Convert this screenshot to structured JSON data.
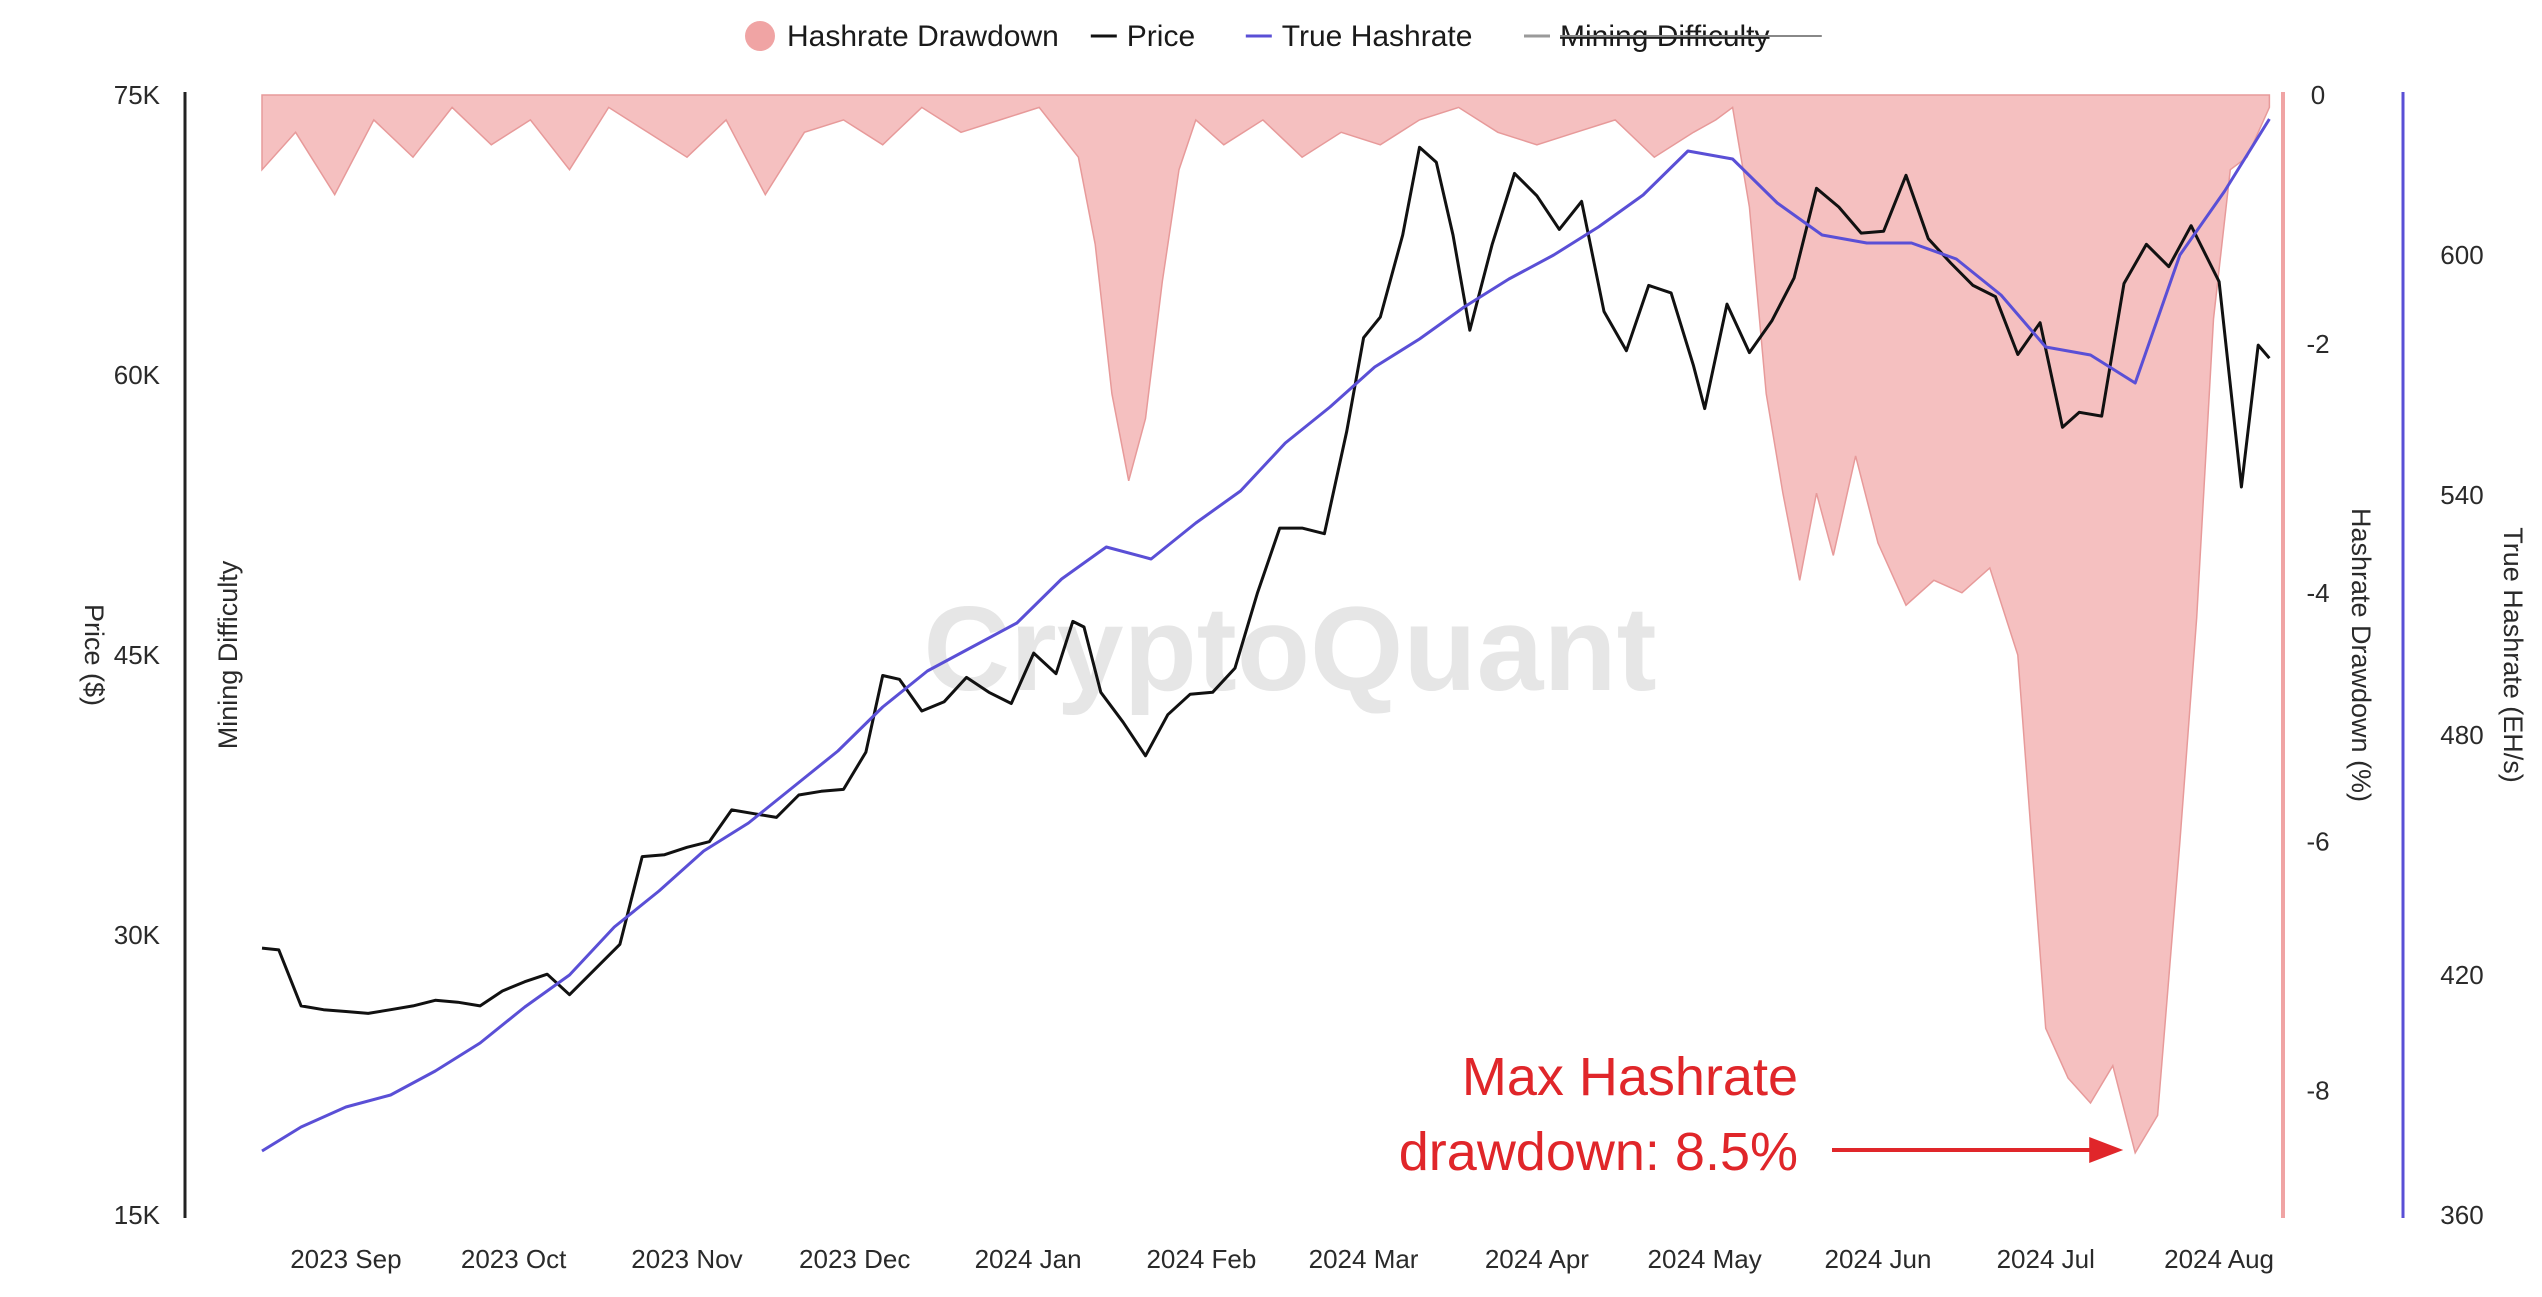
{
  "chart_data": {
    "type": "line",
    "watermark": "CryptoQuant",
    "legend": {
      "position": "top-center",
      "items": [
        {
          "key": "drawdown",
          "label": "Hashrate Drawdown",
          "marker": "dot",
          "color": "#f0a4a4"
        },
        {
          "key": "price",
          "label": "Price",
          "marker": "line",
          "color": "#111111"
        },
        {
          "key": "hashrate",
          "label": "True Hashrate",
          "marker": "line",
          "color": "#5a4fd6"
        },
        {
          "key": "difficulty",
          "label": "Mining Difficulty",
          "marker": "line",
          "color": "#9a9a9a",
          "disabled": true
        }
      ]
    },
    "x_axis": {
      "ticks": [
        "2023 Sep",
        "2023 Oct",
        "2023 Nov",
        "2023 Dec",
        "2024 Jan",
        "2024 Feb",
        "2024 Mar",
        "2024 Apr",
        "2024 May",
        "2024 Jun",
        "2024 Jul",
        "2024 Aug"
      ],
      "range": [
        "2023-08-17",
        "2024-08-11"
      ]
    },
    "y_axes": {
      "price": {
        "label": "Price ($)",
        "range": [
          15000,
          75000
        ],
        "ticks": [
          "15K",
          "30K",
          "45K",
          "60K",
          "75K"
        ],
        "tick_values": [
          15000,
          30000,
          45000,
          60000,
          75000
        ],
        "side": "left"
      },
      "difficulty": {
        "label": "Mining Difficulty",
        "side": "left"
      },
      "drawdown": {
        "label": "Hashrate Drawdown (%)",
        "range": [
          -9,
          0
        ],
        "ticks": [
          "0",
          "-2",
          "-4",
          "-6",
          "-8"
        ],
        "tick_values": [
          0,
          -2,
          -4,
          -6,
          -8
        ],
        "side": "right"
      },
      "hashrate": {
        "label": "True Hashrate (EH/s)",
        "range": [
          360,
          640
        ],
        "ticks": [
          "360",
          "420",
          "480",
          "540",
          "600"
        ],
        "tick_values": [
          360,
          420,
          480,
          540,
          600
        ],
        "side": "right"
      }
    },
    "series": [
      {
        "name": "Price",
        "axis": "price",
        "x": [
          "2023-08-17",
          "2023-08-20",
          "2023-08-24",
          "2023-08-28",
          "2023-09-01",
          "2023-09-05",
          "2023-09-09",
          "2023-09-13",
          "2023-09-17",
          "2023-09-21",
          "2023-09-25",
          "2023-09-29",
          "2023-10-03",
          "2023-10-07",
          "2023-10-11",
          "2023-10-16",
          "2023-10-20",
          "2023-10-24",
          "2023-10-28",
          "2023-11-01",
          "2023-11-05",
          "2023-11-09",
          "2023-11-13",
          "2023-11-17",
          "2023-11-21",
          "2023-11-25",
          "2023-11-29",
          "2023-12-03",
          "2023-12-06",
          "2023-12-09",
          "2023-12-13",
          "2023-12-17",
          "2023-12-21",
          "2023-12-25",
          "2023-12-29",
          "2024-01-02",
          "2024-01-06",
          "2024-01-09",
          "2024-01-11",
          "2024-01-14",
          "2024-01-18",
          "2024-01-22",
          "2024-01-26",
          "2024-01-30",
          "2024-02-03",
          "2024-02-07",
          "2024-02-11",
          "2024-02-15",
          "2024-02-19",
          "2024-02-23",
          "2024-02-27",
          "2024-03-01",
          "2024-03-04",
          "2024-03-08",
          "2024-03-11",
          "2024-03-14",
          "2024-03-17",
          "2024-03-20",
          "2024-03-24",
          "2024-03-28",
          "2024-04-01",
          "2024-04-05",
          "2024-04-09",
          "2024-04-13",
          "2024-04-17",
          "2024-04-21",
          "2024-04-25",
          "2024-04-29",
          "2024-05-01",
          "2024-05-05",
          "2024-05-09",
          "2024-05-13",
          "2024-05-17",
          "2024-05-21",
          "2024-05-25",
          "2024-05-29",
          "2024-06-02",
          "2024-06-06",
          "2024-06-10",
          "2024-06-14",
          "2024-06-18",
          "2024-06-22",
          "2024-06-26",
          "2024-06-30",
          "2024-07-04",
          "2024-07-07",
          "2024-07-11",
          "2024-07-15",
          "2024-07-19",
          "2024-07-23",
          "2024-07-27",
          "2024-07-29",
          "2024-08-01",
          "2024-08-05",
          "2024-08-08",
          "2024-08-10"
        ],
        "values": [
          29300,
          29200,
          26200,
          26000,
          25900,
          25800,
          26000,
          26200,
          26500,
          26400,
          26200,
          27000,
          27500,
          27900,
          26800,
          28300,
          29500,
          34200,
          34300,
          34700,
          35000,
          36700,
          36500,
          36300,
          37500,
          37700,
          37800,
          39800,
          43900,
          43700,
          42000,
          42500,
          43800,
          43000,
          42400,
          45100,
          44000,
          46800,
          46500,
          43000,
          41400,
          39600,
          41800,
          42900,
          43000,
          44300,
          48300,
          51800,
          51800,
          51500,
          57000,
          62000,
          63100,
          67500,
          72200,
          71400,
          67500,
          62400,
          67000,
          70800,
          69600,
          67800,
          69300,
          63400,
          61300,
          64800,
          64400,
          60500,
          58200,
          63800,
          61200,
          62900,
          65200,
          70000,
          69000,
          67600,
          67700,
          70700,
          67300,
          66000,
          64800,
          64200,
          61100,
          62800,
          57200,
          58000,
          57800,
          64900,
          67000,
          65800,
          68000,
          66800,
          65000,
          54000,
          61600,
          60900
        ],
        "color": "#111111"
      },
      {
        "name": "True Hashrate",
        "axis": "hashrate",
        "x": [
          "2023-08-17",
          "2023-08-24",
          "2023-09-01",
          "2023-09-09",
          "2023-09-17",
          "2023-09-25",
          "2023-10-03",
          "2023-10-11",
          "2023-10-19",
          "2023-10-27",
          "2023-11-04",
          "2023-11-12",
          "2023-11-20",
          "2023-11-28",
          "2023-12-06",
          "2023-12-14",
          "2023-12-22",
          "2023-12-30",
          "2024-01-07",
          "2024-01-15",
          "2024-01-23",
          "2024-01-31",
          "2024-02-08",
          "2024-02-16",
          "2024-02-24",
          "2024-03-03",
          "2024-03-11",
          "2024-03-19",
          "2024-03-27",
          "2024-04-04",
          "2024-04-12",
          "2024-04-20",
          "2024-04-28",
          "2024-05-06",
          "2024-05-14",
          "2024-05-22",
          "2024-05-30",
          "2024-06-07",
          "2024-06-15",
          "2024-06-23",
          "2024-07-01",
          "2024-07-09",
          "2024-07-17",
          "2024-07-25",
          "2024-08-02",
          "2024-08-10"
        ],
        "values": [
          376,
          382,
          387,
          390,
          396,
          403,
          412,
          420,
          432,
          441,
          451,
          458,
          467,
          476,
          487,
          496,
          502,
          508,
          519,
          527,
          524,
          533,
          541,
          553,
          562,
          572,
          579,
          587,
          594,
          600,
          607,
          615,
          626,
          624,
          613,
          605,
          603,
          603,
          599,
          590,
          577,
          575,
          568,
          600,
          616,
          634
        ],
        "color": "#5a4fd6"
      },
      {
        "name": "Hashrate Drawdown",
        "axis": "drawdown",
        "type": "area",
        "x": [
          "2023-08-17",
          "2023-08-23",
          "2023-08-30",
          "2023-09-06",
          "2023-09-13",
          "2023-09-20",
          "2023-09-27",
          "2023-10-04",
          "2023-10-11",
          "2023-10-18",
          "2023-10-25",
          "2023-11-01",
          "2023-11-08",
          "2023-11-15",
          "2023-11-22",
          "2023-11-29",
          "2023-12-06",
          "2023-12-13",
          "2023-12-20",
          "2023-12-27",
          "2024-01-03",
          "2024-01-10",
          "2024-01-13",
          "2024-01-16",
          "2024-01-19",
          "2024-01-22",
          "2024-01-25",
          "2024-01-28",
          "2024-01-31",
          "2024-02-05",
          "2024-02-12",
          "2024-02-19",
          "2024-02-26",
          "2024-03-04",
          "2024-03-11",
          "2024-03-18",
          "2024-03-25",
          "2024-04-01",
          "2024-04-08",
          "2024-04-15",
          "2024-04-22",
          "2024-04-29",
          "2024-05-03",
          "2024-05-06",
          "2024-05-09",
          "2024-05-12",
          "2024-05-15",
          "2024-05-18",
          "2024-05-21",
          "2024-05-24",
          "2024-05-28",
          "2024-06-01",
          "2024-06-06",
          "2024-06-11",
          "2024-06-16",
          "2024-06-21",
          "2024-06-26",
          "2024-07-01",
          "2024-07-05",
          "2024-07-09",
          "2024-07-13",
          "2024-07-17",
          "2024-07-21",
          "2024-07-25",
          "2024-07-28",
          "2024-07-31",
          "2024-08-03",
          "2024-08-06",
          "2024-08-10"
        ],
        "values": [
          -0.6,
          -0.3,
          -0.8,
          -0.2,
          -0.5,
          -0.1,
          -0.4,
          -0.2,
          -0.6,
          -0.1,
          -0.3,
          -0.5,
          -0.2,
          -0.8,
          -0.3,
          -0.2,
          -0.4,
          -0.1,
          -0.3,
          -0.2,
          -0.1,
          -0.5,
          -1.2,
          -2.4,
          -3.1,
          -2.6,
          -1.5,
          -0.6,
          -0.2,
          -0.4,
          -0.2,
          -0.5,
          -0.3,
          -0.4,
          -0.2,
          -0.1,
          -0.3,
          -0.4,
          -0.3,
          -0.2,
          -0.5,
          -0.3,
          -0.2,
          -0.1,
          -0.9,
          -2.4,
          -3.2,
          -3.9,
          -3.2,
          -3.7,
          -2.9,
          -3.6,
          -4.1,
          -3.9,
          -4.0,
          -3.8,
          -4.5,
          -7.5,
          -7.9,
          -8.1,
          -7.8,
          -8.5,
          -8.2,
          -6.0,
          -4.2,
          -1.8,
          -0.6,
          -0.5,
          -0.1
        ],
        "color": "#f3b5b5"
      }
    ],
    "annotation": {
      "lines": [
        "Max Hashrate",
        "drawdown: 8.5%"
      ],
      "target_x": "2024-07-17",
      "target_value": -8.5,
      "color": "#e0262a"
    }
  }
}
